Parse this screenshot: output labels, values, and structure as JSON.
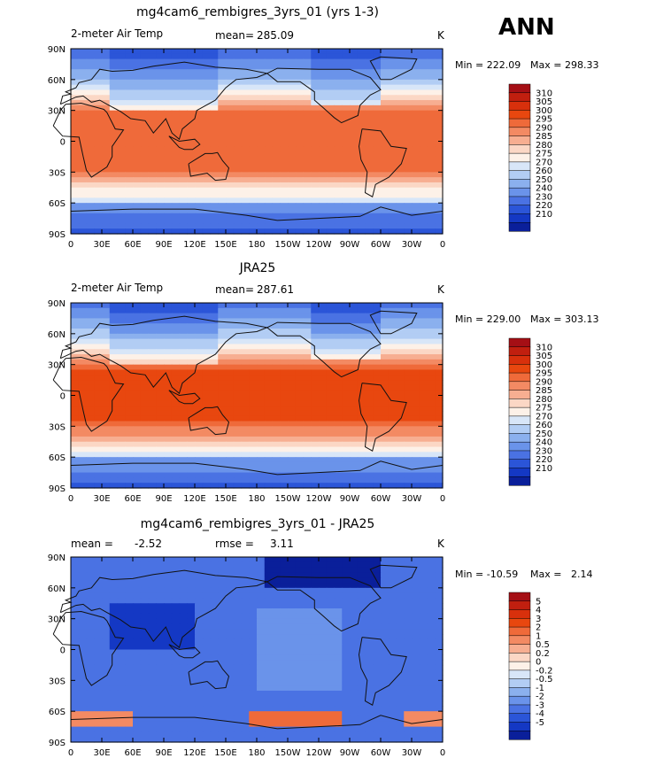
{
  "season": "ANN",
  "units": "K",
  "panels": [
    {
      "title": "mg4cam6_rembigres_3yrs_01 (yrs 1-3)",
      "left_label": "2-meter Air Temp",
      "mean_label": "mean=",
      "mean_value": "285.09",
      "min_text": "Min = 222.09",
      "max_text": "Max = 298.33"
    },
    {
      "title": "JRA25",
      "left_label": "2-meter Air Temp",
      "mean_label": "mean=",
      "mean_value": "287.61",
      "min_text": "Min = 229.00",
      "max_text": "Max = 303.13"
    },
    {
      "title": "mg4cam6_rembigres_3yrs_01 - JRA25",
      "left_label": "mean =",
      "left_value": "-2.52",
      "rmse_label": "rmse =",
      "rmse_value": "3.11",
      "min_text": "Min = -10.59",
      "max_text": "Max =   2.14"
    }
  ],
  "lat_ticks": [
    "90N",
    "60N",
    "30N",
    "0",
    "30S",
    "60S",
    "90S"
  ],
  "lon_ticks": [
    "0",
    "30E",
    "60E",
    "90E",
    "120E",
    "150E",
    "180",
    "150W",
    "120W",
    "90W",
    "60W",
    "30W",
    "0"
  ],
  "temp_colorbar": {
    "labels": [
      "310",
      "305",
      "300",
      "295",
      "290",
      "285",
      "280",
      "275",
      "270",
      "260",
      "250",
      "240",
      "230",
      "220",
      "210"
    ],
    "colors": [
      "#a50f15",
      "#c11f0f",
      "#d8300c",
      "#e8470f",
      "#ef6a3a",
      "#f38a63",
      "#f7ae91",
      "#fbd7c5",
      "#fdf1e8",
      "#d8e6f8",
      "#b2cdf4",
      "#8bb0ee",
      "#6a93ea",
      "#4a72e3",
      "#2b55d8",
      "#1438c4",
      "#0a1f9a"
    ]
  },
  "diff_colorbar": {
    "labels": [
      "5",
      "4",
      "3",
      "2",
      "1",
      "0.5",
      "0.2",
      "0",
      "-0.2",
      "-0.5",
      "-1",
      "-2",
      "-3",
      "-4",
      "-5"
    ],
    "colors": [
      "#a50f15",
      "#c11f0f",
      "#d8300c",
      "#e8470f",
      "#ef6a3a",
      "#f38a63",
      "#f7ae91",
      "#fbd7c5",
      "#fdf1e8",
      "#d8e6f8",
      "#b2cdf4",
      "#8bb0ee",
      "#6a93ea",
      "#4a72e3",
      "#2b55d8",
      "#1438c4",
      "#0a1f9a"
    ]
  },
  "chart_data": [
    {
      "type": "heatmap",
      "title": "mg4cam6_rembigres_3yrs_01 (yrs 1-3)",
      "variable": "2-meter Air Temp",
      "units": "K",
      "mean": 285.09,
      "min": 222.09,
      "max": 298.33,
      "xlim": [
        0,
        360
      ],
      "ylim": [
        -90,
        90
      ],
      "contour_levels": [
        210,
        220,
        230,
        240,
        250,
        260,
        270,
        275,
        280,
        285,
        290,
        295,
        300,
        305,
        310
      ]
    },
    {
      "type": "heatmap",
      "title": "JRA25",
      "variable": "2-meter Air Temp",
      "units": "K",
      "mean": 287.61,
      "min": 229.0,
      "max": 303.13,
      "xlim": [
        0,
        360
      ],
      "ylim": [
        -90,
        90
      ],
      "contour_levels": [
        210,
        220,
        230,
        240,
        250,
        260,
        270,
        275,
        280,
        285,
        290,
        295,
        300,
        305,
        310
      ]
    },
    {
      "type": "heatmap",
      "title": "mg4cam6_rembigres_3yrs_01 - JRA25",
      "units": "K",
      "mean": -2.52,
      "rmse": 3.11,
      "min": -10.59,
      "max": 2.14,
      "xlim": [
        0,
        360
      ],
      "ylim": [
        -90,
        90
      ],
      "contour_levels": [
        -5,
        -4,
        -3,
        -2,
        -1,
        -0.5,
        -0.2,
        0,
        0.2,
        0.5,
        1,
        2,
        3,
        4,
        5
      ]
    }
  ]
}
